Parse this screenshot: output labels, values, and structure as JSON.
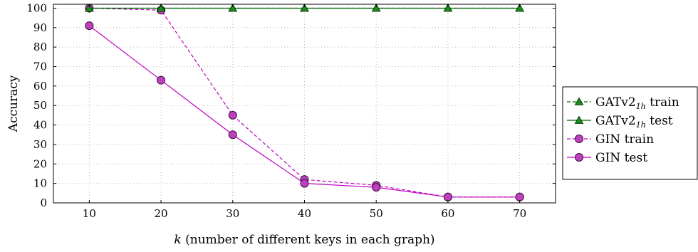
{
  "chart_data": {
    "type": "line",
    "xlabel_var": "k",
    "xlabel_rest": " (number of different keys in each graph)",
    "ylabel": "Accuracy",
    "x": [
      10,
      20,
      30,
      40,
      50,
      60,
      70
    ],
    "x_ticks": [
      10,
      20,
      30,
      40,
      50,
      60,
      70
    ],
    "y_ticks": [
      0,
      10,
      20,
      30,
      40,
      50,
      60,
      70,
      80,
      90,
      100
    ],
    "xlim": [
      5,
      75
    ],
    "ylim": [
      0,
      102
    ],
    "grid": true,
    "legend_position": "right",
    "series": [
      {
        "name_main": "GATv2",
        "name_sub": "1h",
        "name_suffix": " train",
        "values": [
          100,
          100,
          100,
          100,
          100,
          100,
          100
        ],
        "color": "#006400",
        "marker": "triangle",
        "dashed": true
      },
      {
        "name_main": "GATv2",
        "name_sub": "1h",
        "name_suffix": " test",
        "values": [
          100,
          100,
          100,
          100,
          100,
          100,
          100
        ],
        "color": "#006400",
        "marker": "triangle",
        "dashed": false
      },
      {
        "name_main": "GIN",
        "name_sub": "",
        "name_suffix": " train",
        "values": [
          100,
          99,
          45,
          12,
          9,
          3,
          3
        ],
        "color": "#bf00bf",
        "marker": "circle",
        "dashed": true
      },
      {
        "name_main": "GIN",
        "name_sub": "",
        "name_suffix": " test",
        "values": [
          91,
          63,
          35,
          10,
          8,
          3,
          3
        ],
        "color": "#bf00bf",
        "marker": "circle",
        "dashed": false
      }
    ],
    "colors": {
      "gat_line": "#006400",
      "gat_fill": "#1a8f1a",
      "gin_line": "#bf00bf",
      "gin_fill": "#bf40bf",
      "grid": "#b0b0b0"
    }
  }
}
